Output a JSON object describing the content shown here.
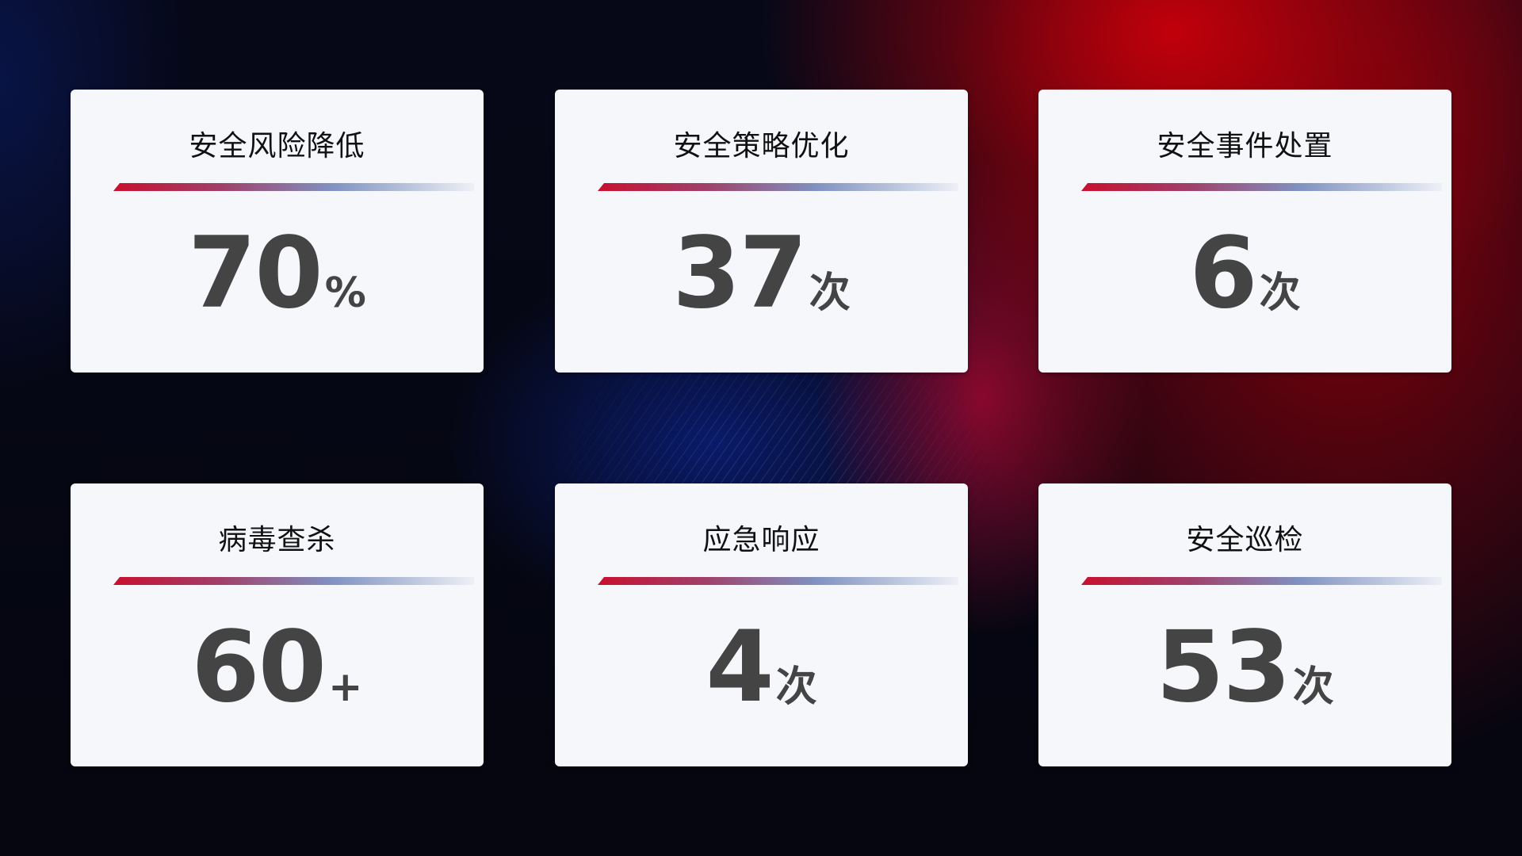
{
  "cards": [
    {
      "title": "安全风险降低",
      "value": "70",
      "unit": "%"
    },
    {
      "title": "安全策略优化",
      "value": "37",
      "unit": "次"
    },
    {
      "title": "安全事件处置",
      "value": "6",
      "unit": "次"
    },
    {
      "title": "病毒查杀",
      "value": "60",
      "unit": "+"
    },
    {
      "title": "应急响应",
      "value": "4",
      "unit": "次"
    },
    {
      "title": "安全巡检",
      "value": "53",
      "unit": "次"
    }
  ],
  "colors": {
    "accent_red": "#c8102e",
    "accent_blue": "#8090c0",
    "card_bg": "#f6f7fb",
    "number_text": "#444444"
  }
}
